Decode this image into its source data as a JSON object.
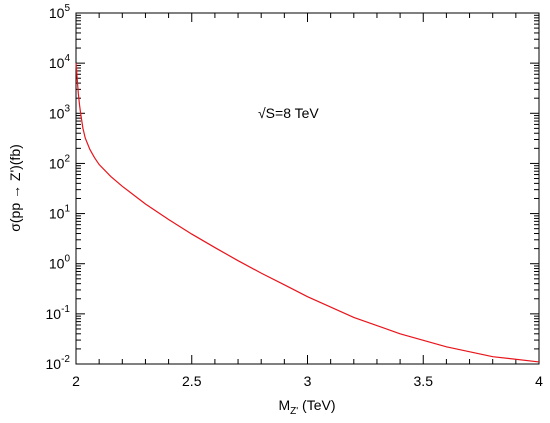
{
  "chart_data": {
    "type": "line",
    "xlabel_main": "M",
    "xlabel_sub": "Z'",
    "xlabel_unit": " (TeV)",
    "ylabel": "σ(pp → Z')(fb)",
    "annotation": "√S=8 TeV",
    "xlim": [
      2,
      4
    ],
    "ylim": [
      0.01,
      100000
    ],
    "yscale": "log",
    "grid": false,
    "series_color": "#e8141b",
    "xticks": [
      {
        "value": 2,
        "label": "2"
      },
      {
        "value": 2.5,
        "label": "2.5"
      },
      {
        "value": 3,
        "label": "3"
      },
      {
        "value": 3.5,
        "label": "3.5"
      },
      {
        "value": 4,
        "label": "4"
      }
    ],
    "yticks": [
      {
        "value": 0.01,
        "base": "10",
        "exp": "-2"
      },
      {
        "value": 0.1,
        "base": "10",
        "exp": "-1"
      },
      {
        "value": 1,
        "base": "10",
        "exp": "0"
      },
      {
        "value": 10,
        "base": "10",
        "exp": "1"
      },
      {
        "value": 100,
        "base": "10",
        "exp": "2"
      },
      {
        "value": 1000,
        "base": "10",
        "exp": "3"
      },
      {
        "value": 10000,
        "base": "10",
        "exp": "4"
      },
      {
        "value": 100000,
        "base": "10",
        "exp": "5"
      }
    ],
    "series": [
      {
        "x": [
          2.0,
          2.005,
          2.01,
          2.015,
          2.02,
          2.03,
          2.04,
          2.06,
          2.08,
          2.1,
          2.15,
          2.2,
          2.3,
          2.4,
          2.5,
          2.6,
          2.7,
          2.8,
          2.9,
          3.0,
          3.2,
          3.4,
          3.6,
          3.8,
          4.0
        ],
        "y": [
          10000,
          5000,
          2500,
          1500,
          1000,
          500,
          320,
          190,
          130,
          95,
          55,
          35,
          15.5,
          7.6,
          3.9,
          2.1,
          1.15,
          0.65,
          0.38,
          0.22,
          0.085,
          0.04,
          0.022,
          0.014,
          0.011
        ]
      }
    ]
  }
}
